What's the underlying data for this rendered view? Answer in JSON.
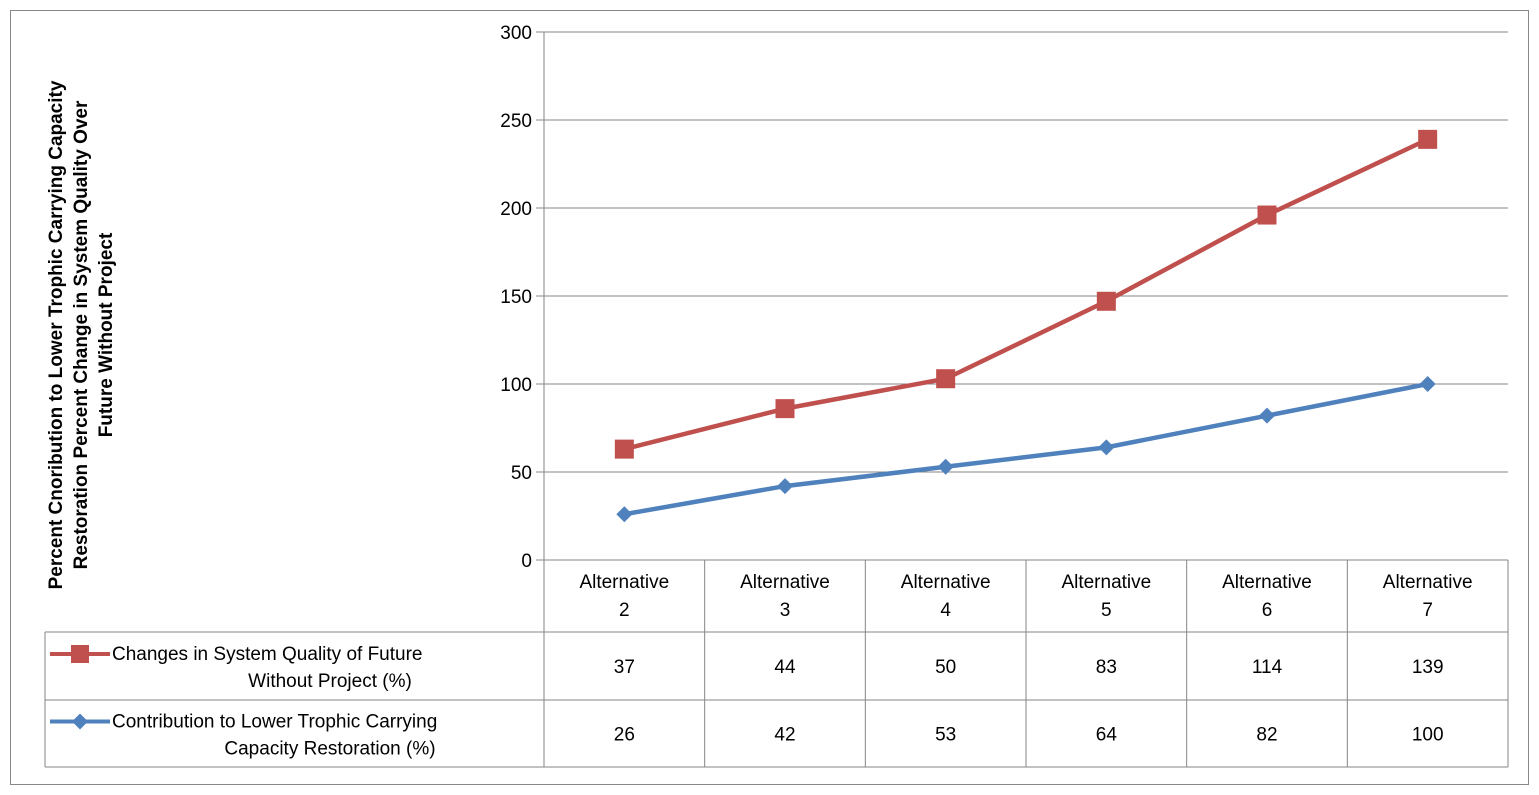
{
  "chart_data": {
    "type": "line",
    "ylabel": [
      "Percent Cnoribution to Lower Trophic Carrying Capacity",
      "Restoration Percent Change in System Quality Over",
      "Future Without Project"
    ],
    "categories": [
      [
        "Alternative",
        "2"
      ],
      [
        "Alternative",
        "3"
      ],
      [
        "Alternative",
        "4"
      ],
      [
        "Alternative",
        "5"
      ],
      [
        "Alternative",
        "6"
      ],
      [
        "Alternative",
        "7"
      ]
    ],
    "ylim": [
      0,
      300
    ],
    "yticks": [
      0,
      50,
      100,
      150,
      200,
      250,
      300
    ],
    "grid": true,
    "series": [
      {
        "name": [
          "Changes in System Quality of Future",
          "Without Project (%)"
        ],
        "color": "#C0504D",
        "marker": "square",
        "values": [
          63,
          86,
          103,
          147,
          196,
          239
        ],
        "table_values": [
          "37",
          "44",
          "50",
          "83",
          "114",
          "139"
        ]
      },
      {
        "name": [
          "Contribution to Lower Trophic Carrying",
          "Capacity Restoration (%)"
        ],
        "color": "#4F81BD",
        "marker": "diamond",
        "values": [
          26,
          42,
          53,
          64,
          82,
          100
        ],
        "table_values": [
          "26",
          "42",
          "53",
          "64",
          "82",
          "100"
        ]
      }
    ]
  }
}
